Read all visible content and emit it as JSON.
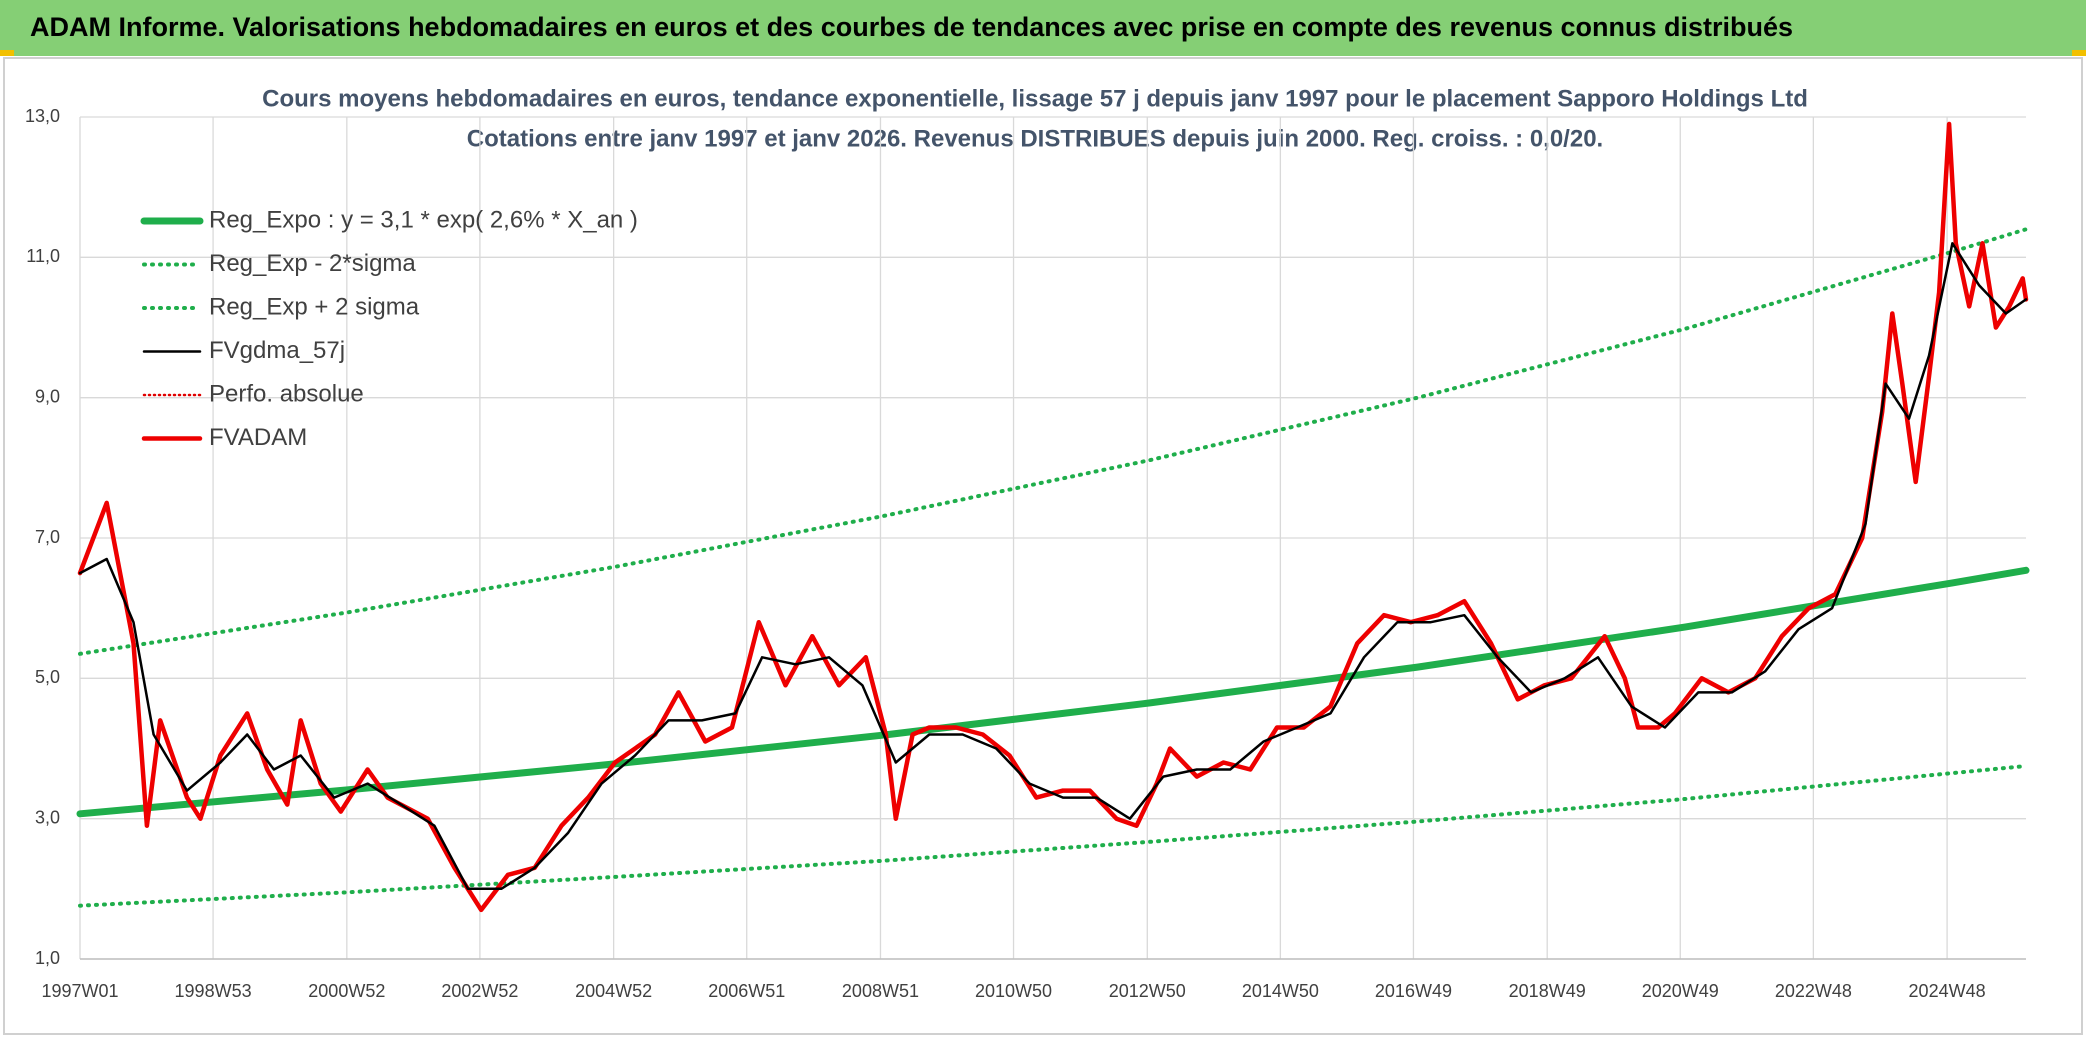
{
  "header": {
    "title": "ADAM Informe. Valorisations hebdomadaires en euros et des courbes de tendances avec prise en compte des revenus connus distribués"
  },
  "chart_data": {
    "type": "line",
    "title": "Cours moyens hebdomadaires en euros, tendance exponentielle, lissage 57 j depuis janv 1997 pour le placement Sapporo Holdings Ltd",
    "subtitle": "Cotations entre janv 1997 et janv 2026. Revenus DISTRIBUES depuis juin 2000. Reg. croiss. : 0,0/20.",
    "xlim": [
      1997.0,
      2026.1
    ],
    "xticks": [
      {
        "value": 1997.0,
        "label": "1997W01"
      },
      {
        "value": 1998.99,
        "label": "1998W53"
      },
      {
        "value": 2000.99,
        "label": "2000W52"
      },
      {
        "value": 2002.98,
        "label": "2002W52"
      },
      {
        "value": 2004.98,
        "label": "2004W52"
      },
      {
        "value": 2006.97,
        "label": "2006W51"
      },
      {
        "value": 2008.97,
        "label": "2008W51"
      },
      {
        "value": 2010.96,
        "label": "2010W50"
      },
      {
        "value": 2012.96,
        "label": "2012W50"
      },
      {
        "value": 2014.95,
        "label": "2014W50"
      },
      {
        "value": 2016.94,
        "label": "2016W49"
      },
      {
        "value": 2018.94,
        "label": "2018W49"
      },
      {
        "value": 2020.93,
        "label": "2020W49"
      },
      {
        "value": 2022.92,
        "label": "2022W48"
      },
      {
        "value": 2024.92,
        "label": "2024W48"
      }
    ],
    "ylim": [
      1,
      13
    ],
    "yticks": [
      {
        "value": 1,
        "label": "1,0"
      },
      {
        "value": 3,
        "label": "3,0"
      },
      {
        "value": 5,
        "label": "5,0"
      },
      {
        "value": 7,
        "label": "7,0"
      },
      {
        "value": 9,
        "label": "9,0"
      },
      {
        "value": 11,
        "label": "11,0"
      },
      {
        "value": 13,
        "label": "13,0"
      }
    ],
    "grid": true,
    "series": [
      {
        "name": "Reg_Expo : y = 3,1 * exp( 2,6% *  X_an )",
        "color": "#1fae4b",
        "style": "thick",
        "x": [
          1997,
          2001,
          2005,
          2009,
          2013,
          2017,
          2021,
          2025,
          2026.1
        ],
        "values": [
          3.07,
          3.41,
          3.78,
          4.19,
          4.65,
          5.16,
          5.73,
          6.36,
          6.54
        ]
      },
      {
        "name": "Reg_Exp - 2*sigma",
        "color": "#1fae4b",
        "style": "dotted",
        "x": [
          1997,
          2001,
          2005,
          2009,
          2013,
          2017,
          2021,
          2025,
          2026.1
        ],
        "values": [
          1.76,
          1.95,
          2.17,
          2.4,
          2.67,
          2.96,
          3.28,
          3.65,
          3.75
        ]
      },
      {
        "name": "Reg_Exp + 2 sigma",
        "color": "#1fae4b",
        "style": "dotted",
        "x": [
          1997,
          2001,
          2005,
          2009,
          2013,
          2017,
          2021,
          2025,
          2026.1
        ],
        "values": [
          5.35,
          5.94,
          6.59,
          7.31,
          8.11,
          9.0,
          9.98,
          11.08,
          11.4
        ]
      },
      {
        "name": "FVgdma_57j",
        "color": "#000000",
        "style": "solid",
        "x": [
          1997.0,
          1997.4,
          1997.8,
          1998.1,
          1998.6,
          1999.1,
          1999.5,
          1999.9,
          2000.3,
          2000.8,
          2001.3,
          2001.8,
          2002.3,
          2002.8,
          2003.3,
          2003.8,
          2004.3,
          2004.8,
          2005.3,
          2005.8,
          2006.3,
          2006.8,
          2007.2,
          2007.7,
          2008.2,
          2008.7,
          2009.2,
          2009.7,
          2010.2,
          2010.7,
          2011.2,
          2011.7,
          2012.2,
          2012.7,
          2013.2,
          2013.7,
          2014.2,
          2014.7,
          2015.2,
          2015.7,
          2016.2,
          2016.7,
          2017.2,
          2017.7,
          2018.2,
          2018.7,
          2019.2,
          2019.7,
          2020.2,
          2020.7,
          2021.2,
          2021.7,
          2022.2,
          2022.7,
          2023.2,
          2023.7,
          2024.0,
          2024.35,
          2024.65,
          2025.0,
          2025.4,
          2025.8,
          2026.1
        ],
        "values": [
          6.5,
          6.7,
          5.8,
          4.2,
          3.4,
          3.8,
          4.2,
          3.7,
          3.9,
          3.3,
          3.5,
          3.2,
          2.9,
          2.0,
          2.0,
          2.3,
          2.8,
          3.5,
          3.9,
          4.4,
          4.4,
          4.5,
          5.3,
          5.2,
          5.3,
          4.9,
          3.8,
          4.2,
          4.2,
          4.0,
          3.5,
          3.3,
          3.3,
          3.0,
          3.6,
          3.7,
          3.7,
          4.1,
          4.3,
          4.5,
          5.3,
          5.8,
          5.8,
          5.9,
          5.3,
          4.8,
          5.0,
          5.3,
          4.6,
          4.3,
          4.8,
          4.8,
          5.1,
          5.7,
          6.0,
          7.2,
          9.2,
          8.7,
          9.6,
          11.2,
          10.6,
          10.2,
          10.4
        ]
      },
      {
        "name": "Perfo. absolue",
        "color": "#e00000",
        "style": "dotted-thin"
      },
      {
        "name": "FVADAM",
        "color": "#ee0000",
        "style": "bold",
        "x": [
          1997.0,
          1997.4,
          1997.8,
          1998.0,
          1998.2,
          1998.6,
          1998.8,
          1999.1,
          1999.5,
          1999.8,
          2000.1,
          2000.3,
          2000.6,
          2000.9,
          2001.3,
          2001.6,
          2002.2,
          2002.6,
          2003.0,
          2003.4,
          2003.8,
          2004.2,
          2004.6,
          2005.0,
          2005.6,
          2005.95,
          2006.35,
          2006.75,
          2007.15,
          2007.55,
          2007.95,
          2008.35,
          2008.75,
          2009.05,
          2009.2,
          2009.45,
          2009.7,
          2010.1,
          2010.5,
          2010.9,
          2011.3,
          2011.7,
          2012.1,
          2012.5,
          2012.8,
          2013.1,
          2013.3,
          2013.7,
          2014.1,
          2014.5,
          2014.9,
          2015.3,
          2015.7,
          2016.1,
          2016.5,
          2016.9,
          2017.3,
          2017.7,
          2018.1,
          2018.5,
          2018.9,
          2019.3,
          2019.8,
          2020.1,
          2020.3,
          2020.6,
          2020.85,
          2021.25,
          2021.65,
          2022.05,
          2022.45,
          2022.85,
          2023.25,
          2023.65,
          2023.95,
          2024.1,
          2024.25,
          2024.45,
          2024.65,
          2024.8,
          2024.95,
          2025.05,
          2025.25,
          2025.45,
          2025.65,
          2025.85,
          2026.05,
          2026.1
        ],
        "values": [
          6.5,
          7.5,
          5.5,
          2.9,
          4.4,
          3.3,
          3.0,
          3.9,
          4.5,
          3.7,
          3.2,
          4.4,
          3.5,
          3.1,
          3.7,
          3.3,
          3.0,
          2.3,
          1.7,
          2.2,
          2.3,
          2.9,
          3.3,
          3.8,
          4.2,
          4.8,
          4.1,
          4.3,
          5.8,
          4.9,
          5.6,
          4.9,
          5.3,
          4.2,
          3.0,
          4.2,
          4.3,
          4.3,
          4.2,
          3.9,
          3.3,
          3.4,
          3.4,
          3.0,
          2.9,
          3.5,
          4.0,
          3.6,
          3.8,
          3.7,
          4.3,
          4.3,
          4.6,
          5.5,
          5.9,
          5.8,
          5.9,
          6.1,
          5.5,
          4.7,
          4.9,
          5.0,
          5.6,
          5.0,
          4.3,
          4.3,
          4.5,
          5.0,
          4.8,
          5.0,
          5.6,
          6.0,
          6.2,
          7.0,
          8.8,
          10.2,
          9.2,
          7.8,
          9.3,
          10.5,
          12.9,
          11.2,
          10.3,
          11.2,
          10.0,
          10.3,
          10.7,
          10.4
        ]
      }
    ]
  }
}
